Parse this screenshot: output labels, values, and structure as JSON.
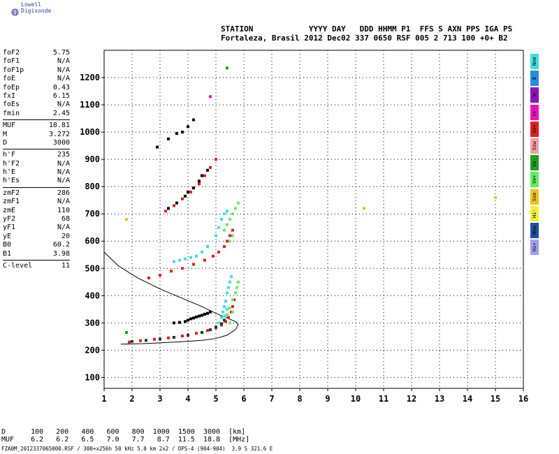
{
  "logo": {
    "text": "Lowell Digisonde",
    "icon": "globe-icon"
  },
  "header": {
    "line1": "STATION            YYYY DAY   DDD HHMM P1  FFS S AXN PPS IGA PS",
    "line2": "Fortaleza, Brasil 2012 Dec02 337 0650 RSF 005 2 713 100 +0+ B2"
  },
  "params": {
    "group1": [
      {
        "k": "foF2",
        "v": "5.75"
      },
      {
        "k": "foF1",
        "v": "N/A"
      },
      {
        "k": "foF1p",
        "v": "N/A"
      },
      {
        "k": "foE",
        "v": "N/A"
      },
      {
        "k": "foEp",
        "v": "0.43"
      },
      {
        "k": "fxI",
        "v": "6.15"
      },
      {
        "k": "foEs",
        "v": "N/A"
      },
      {
        "k": "fmin",
        "v": "2.45"
      }
    ],
    "group2": [
      {
        "k": "MUF",
        "v": "18.81"
      },
      {
        "k": "M",
        "v": "3.272"
      },
      {
        "k": "D",
        "v": "3000"
      }
    ],
    "group3": [
      {
        "k": "h'F",
        "v": "235"
      },
      {
        "k": "h'F2",
        "v": "N/A"
      },
      {
        "k": "h'E",
        "v": "N/A"
      },
      {
        "k": "h'Es",
        "v": "N/A"
      }
    ],
    "group4": [
      {
        "k": "zmF2",
        "v": "286"
      },
      {
        "k": "zmF1",
        "v": "N/A"
      },
      {
        "k": "zmE",
        "v": "110"
      },
      {
        "k": "yF2",
        "v": "68"
      },
      {
        "k": "yF1",
        "v": "N/A"
      },
      {
        "k": "yE",
        "v": "20"
      },
      {
        "k": "B0",
        "v": "60.2"
      },
      {
        "k": "B1",
        "v": "3.98"
      }
    ],
    "group5": [
      {
        "k": "C-level",
        "v": "11"
      }
    ]
  },
  "legend": [
    {
      "label": "Nne",
      "color": "#40e0e0"
    },
    {
      "label": "E",
      "color": "#2090e0"
    },
    {
      "label": "W",
      "color": "#9010c0"
    },
    {
      "label": "Vo-",
      "color": "#f010c0"
    },
    {
      "label": "Vo+",
      "color": "#e02020"
    },
    {
      "label": "Ssw",
      "color": "#f0a0a0"
    },
    {
      "label": "Vo-",
      "color": "#20a020"
    },
    {
      "label": "Vo+",
      "color": "#60f060"
    },
    {
      "label": "Sse",
      "color": "#f0c020"
    },
    {
      "label": "Hi-",
      "color": "#f0f040"
    },
    {
      "label": "Nnw",
      "color": "#2050a0"
    },
    {
      "label": "Hi+",
      "color": "#a0a0f0"
    }
  ],
  "muf_table": {
    "d_label": "D",
    "d_values": [
      "100",
      "200",
      "400",
      "600",
      "800",
      "1000",
      "1500",
      "3000"
    ],
    "d_unit": "[km]",
    "muf_label": "MUF",
    "muf_values": [
      "6.2",
      "6.2",
      "6.5",
      "7.0",
      "7.7",
      "8.7",
      "11.5",
      "18.8"
    ],
    "muf_unit": "[MHz]"
  },
  "footer": "FZA0M_2012337065000.RSF / 300+x256h 50 kHz 5.0 km 2x2 / DPS-4 (904-904)  3.9 S 321.6 E",
  "chart_data": {
    "type": "scatter",
    "title": "",
    "xlabel": "",
    "ylabel": "",
    "xlim": [
      1,
      16
    ],
    "ylim": [
      60,
      1300
    ],
    "x_ticks": [
      1,
      2,
      3,
      4,
      5,
      6,
      7,
      8,
      9,
      10,
      11,
      12,
      13,
      14,
      15,
      16
    ],
    "y_ticks": [
      100,
      200,
      300,
      400,
      500,
      600,
      700,
      800,
      900,
      1000,
      1100,
      1200
    ],
    "grid": true,
    "profile_curve": {
      "name": "",
      "x": [
        0.9,
        1.5,
        2.2,
        3.0,
        3.8,
        4.5,
        5.0,
        5.4,
        5.7,
        5.8,
        5.7,
        5.4,
        5.0,
        4.5,
        3.8,
        3.0,
        2.4,
        2.0,
        1.6
      ],
      "y": [
        560,
        510,
        465,
        425,
        390,
        360,
        335,
        318,
        305,
        295,
        275,
        255,
        243,
        236,
        231,
        227,
        224,
        223,
        222
      ]
    },
    "series": [
      {
        "name": "F trace",
        "color": "#e02020",
        "x": [
          1.9,
          2.3,
          2.8,
          3.3,
          3.8,
          4.3,
          4.7,
          5.0,
          5.2,
          5.35,
          5.45,
          5.55,
          5.6,
          5.65
        ],
        "y": [
          230,
          235,
          240,
          245,
          252,
          262,
          272,
          282,
          292,
          305,
          320,
          340,
          360,
          385
        ]
      },
      {
        "name": "F trace (O)",
        "color": "#303030",
        "x": [
          2.0,
          2.5,
          3.0,
          3.5,
          4.0,
          4.5,
          4.8,
          5.0,
          5.2,
          5.3
        ],
        "y": [
          232,
          236,
          241,
          247,
          255,
          265,
          275,
          285,
          297,
          310
        ]
      },
      {
        "name": "Spread F",
        "color": "#40e0e0",
        "x": [
          5.1,
          5.2,
          5.25,
          5.3,
          5.35,
          5.4,
          5.45,
          5.5,
          5.55,
          5.3,
          5.4
        ],
        "y": [
          300,
          320,
          340,
          360,
          380,
          410,
          430,
          450,
          470,
          325,
          350
        ]
      },
      {
        "name": "Spread F (G)",
        "color": "#60f060",
        "x": [
          5.4,
          5.5,
          5.6,
          5.7,
          5.75,
          5.8,
          5.6,
          5.5
        ],
        "y": [
          330,
          355,
          385,
          410,
          430,
          450,
          340,
          300
        ]
      },
      {
        "name": "Es cluster",
        "color": "#000000",
        "x": [
          3.5,
          3.7,
          3.9,
          4.0,
          4.1,
          4.2,
          4.3,
          4.4,
          4.5,
          4.6,
          4.7,
          4.8
        ],
        "y": [
          300,
          302,
          305,
          310,
          315,
          318,
          322,
          325,
          328,
          332,
          335,
          340
        ]
      },
      {
        "name": "2F trace",
        "color": "#e02020",
        "x": [
          2.6,
          3.0,
          3.4,
          3.8,
          4.2,
          4.6,
          4.9,
          5.1,
          5.3,
          5.4,
          5.5,
          5.6
        ],
        "y": [
          465,
          475,
          490,
          500,
          515,
          530,
          545,
          560,
          580,
          600,
          620,
          640
        ]
      },
      {
        "name": "2F trace (cyan)",
        "color": "#40e0e0",
        "x": [
          3.5,
          3.7,
          3.9,
          4.1,
          4.3,
          4.5,
          4.7,
          5.0,
          5.1,
          5.2,
          5.3,
          5.4
        ],
        "y": [
          525,
          530,
          535,
          540,
          545,
          560,
          580,
          620,
          650,
          680,
          700,
          710
        ]
      },
      {
        "name": "2F trace (green)",
        "color": "#60f060",
        "x": [
          5.3,
          5.4,
          5.5,
          5.6,
          5.7,
          5.8,
          5.5,
          5.6
        ],
        "y": [
          640,
          660,
          680,
          700,
          720,
          740,
          600,
          620
        ]
      },
      {
        "name": "3F trace",
        "color": "#e02020",
        "x": [
          3.2,
          3.5,
          3.8,
          4.1,
          4.4,
          4.6,
          4.8,
          5.0
        ],
        "y": [
          710,
          730,
          755,
          780,
          810,
          840,
          870,
          900
        ]
      },
      {
        "name": "3F trace (black)",
        "color": "#000000",
        "x": [
          3.3,
          3.6,
          3.9,
          4.0,
          4.2,
          4.4,
          4.5,
          4.7
        ],
        "y": [
          720,
          740,
          765,
          780,
          795,
          820,
          840,
          860
        ]
      },
      {
        "name": "4F trace",
        "color": "#000000",
        "x": [
          2.9,
          3.3,
          3.6,
          3.8,
          4.0,
          4.2
        ],
        "y": [
          945,
          975,
          995,
          1000,
          1020,
          1045
        ]
      },
      {
        "name": "scattered",
        "color": "#f0c020",
        "x": [
          1.8,
          10.3,
          15.0
        ],
        "y": [
          680,
          720,
          760
        ]
      },
      {
        "name": "scattered (green)",
        "color": "#20a020",
        "x": [
          5.4,
          1.8
        ],
        "y": [
          1235,
          265
        ]
      },
      {
        "name": "scattered (pink)",
        "color": "#f010c0",
        "x": [
          4.8
        ],
        "y": [
          1130
        ]
      }
    ]
  }
}
